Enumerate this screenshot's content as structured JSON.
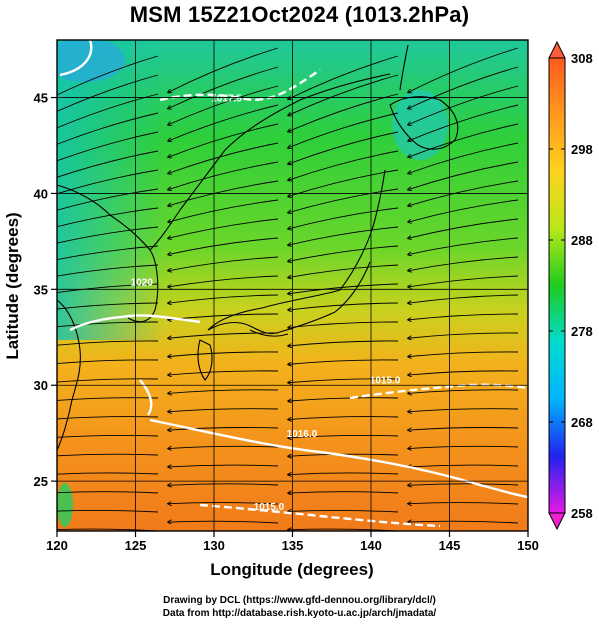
{
  "title": "MSM 15Z21Oct2024 (1013.2hPa)",
  "map": {
    "lon_range": [
      120,
      150
    ],
    "lat_range": [
      22.4,
      48
    ],
    "x_ticks": [
      120,
      125,
      130,
      135,
      140,
      145,
      150
    ],
    "y_ticks": [
      25,
      30,
      35,
      40,
      45
    ],
    "x_label": "Longitude (degrees)",
    "y_label": "Latitude  (degrees)",
    "grid": true,
    "field": "temperature",
    "streamlines": "wind",
    "isobars": [
      {
        "label": "1020",
        "lon": 125.4,
        "lat": 35.2
      },
      {
        "label": "1017.5",
        "lon": 130.8,
        "lat": 44.8
      },
      {
        "label": "1015.0",
        "lon": 140.9,
        "lat": 30.1
      },
      {
        "label": "1016.0",
        "lon": 135.6,
        "lat": 27.3
      },
      {
        "label": "1015.0",
        "lon": 133.5,
        "lat": 23.5
      }
    ]
  },
  "colorbar": {
    "min": 258,
    "max": 308,
    "ticks": [
      258,
      268,
      278,
      288,
      298,
      308
    ],
    "colors": [
      "#e619e6",
      "#2222ee",
      "#00b4ff",
      "#00dccf",
      "#1fcc1f",
      "#b8e81a",
      "#ffd21e",
      "#ff9a1e",
      "#ff5a1e"
    ]
  },
  "credits": {
    "line1": "Drawing by DCL (https://www.gfd-dennou.org/library/dcl/)",
    "line2": "Data from http://database.rish.kyoto-u.ac.jp/arch/jmadata/"
  }
}
